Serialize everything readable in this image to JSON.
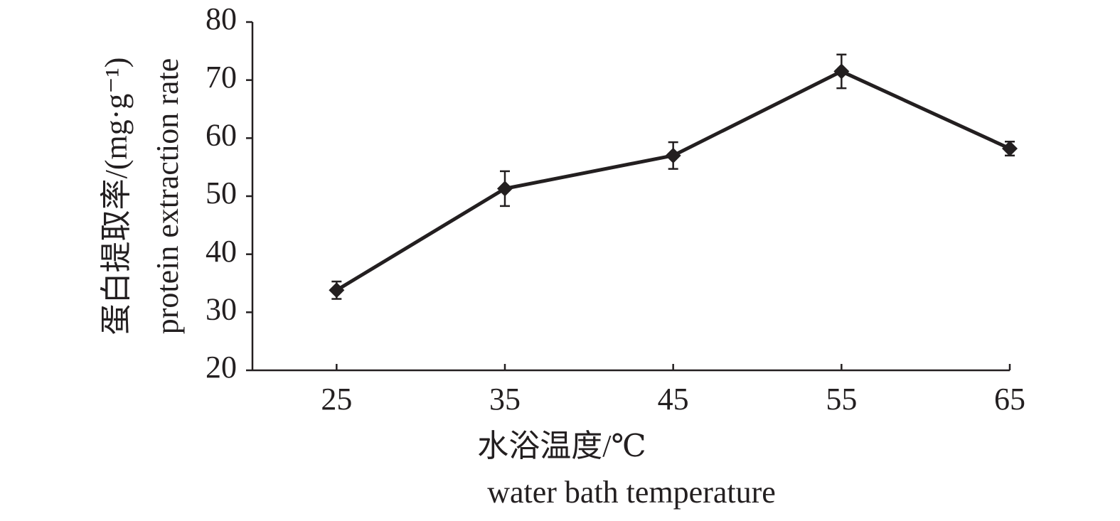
{
  "chart_data": {
    "type": "line",
    "x_label": [
      "水浴温度/℃",
      "water bath temperature"
    ],
    "y_label": [
      "蛋白提取率/(mg·g⁻¹)",
      "protein extraction rate"
    ],
    "x": [
      25,
      35,
      45,
      55,
      65
    ],
    "series": [
      {
        "color": "#231f20",
        "values": [
          33.8,
          51.3,
          57.0,
          71.5,
          58.2
        ],
        "errors": [
          1.5,
          3.0,
          2.3,
          2.9,
          1.2
        ]
      }
    ],
    "xlim": [
      20,
      65
    ],
    "xticks": [
      25,
      35,
      45,
      55,
      65
    ],
    "ylim": [
      20,
      80
    ],
    "yticks": [
      20,
      30,
      40,
      50,
      60,
      70,
      80
    ],
    "grid": false
  }
}
